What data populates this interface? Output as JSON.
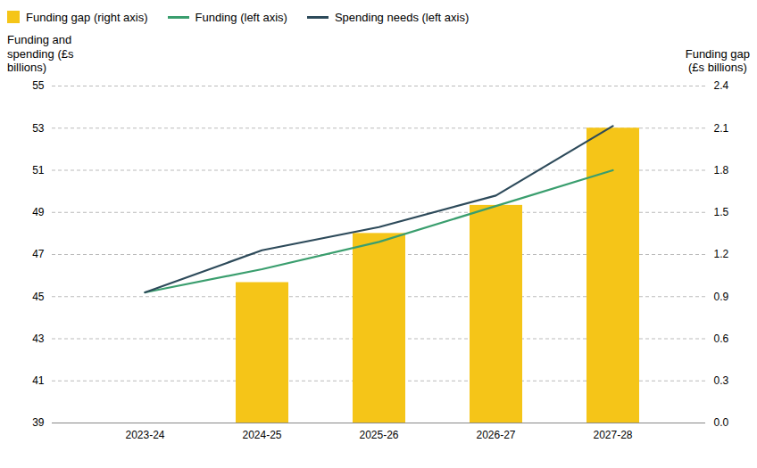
{
  "chart_data": {
    "type": "combo",
    "categories": [
      "2023-24",
      "2024-25",
      "2025-26",
      "2026-27",
      "2027-28"
    ],
    "series": [
      {
        "name": "Funding gap (right axis)",
        "type": "bar",
        "axis": "y2",
        "color": "#F5C518",
        "values": [
          0,
          1.0,
          1.35,
          1.55,
          2.1
        ]
      },
      {
        "name": "Funding (left axis)",
        "type": "line",
        "color": "#3a9e6e",
        "values": [
          45.2,
          46.3,
          47.6,
          49.3,
          51.0
        ]
      },
      {
        "name": "Spending needs (left axis)",
        "type": "line",
        "color": "#2d4a5a",
        "values": [
          45.2,
          47.2,
          48.3,
          49.8,
          53.1
        ]
      }
    ],
    "ylabel": "Funding and\nspending (£s\nbillions)",
    "y2label": "Funding gap\n(£s billions)",
    "ylim": [
      39,
      55
    ],
    "yticks": [
      39,
      41,
      43,
      45,
      47,
      49,
      51,
      53,
      55
    ],
    "y2lim": [
      0,
      2.4
    ],
    "y2ticks": [
      {
        "value": 0,
        "label": "0.0"
      },
      0.3,
      0.6,
      0.9,
      1.2,
      1.5,
      1.8,
      2.1,
      2.4
    ],
    "grid": true,
    "legend": "upper left"
  }
}
